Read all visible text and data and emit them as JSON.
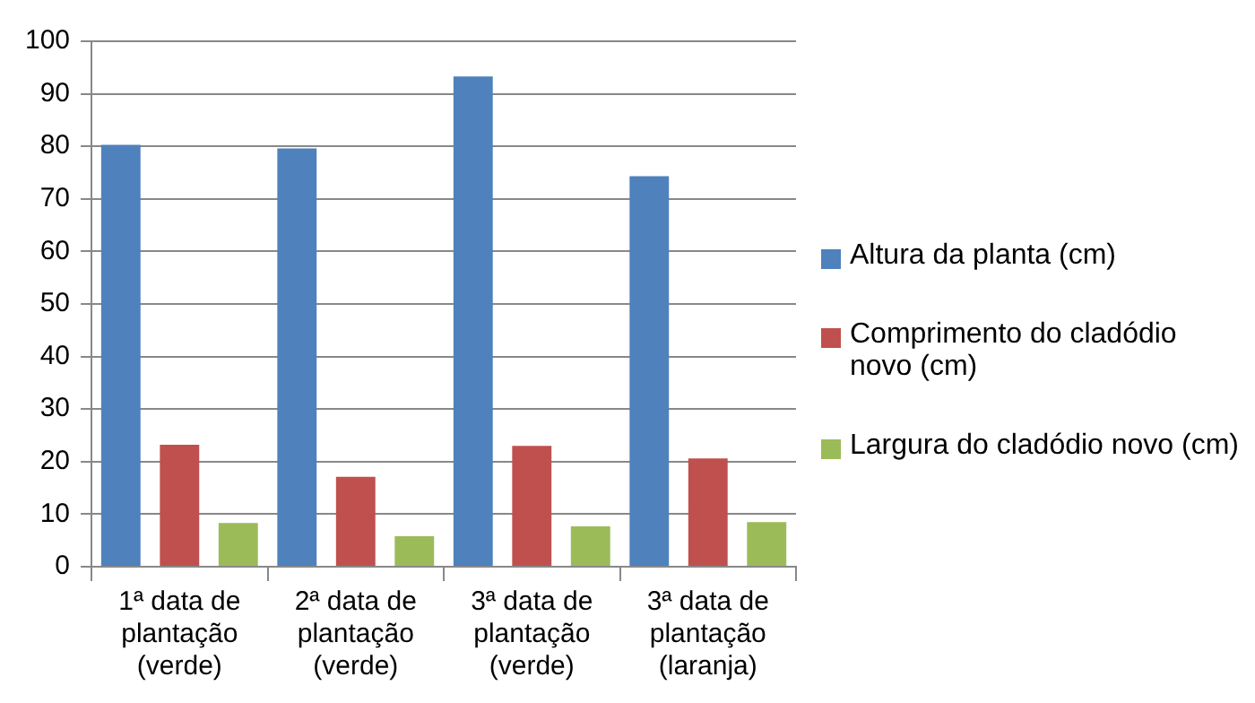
{
  "chart_data": {
    "type": "bar",
    "categories": [
      "1ª data de plantação (verde)",
      "2ª data de plantação (verde)",
      "3ª data de plantação (verde)",
      "3ª data de plantação (laranja)"
    ],
    "series": [
      {
        "name": "Altura da planta (cm)",
        "color": "#4f81bd",
        "values": [
          80.3,
          79.6,
          93.3,
          74.3
        ]
      },
      {
        "name": "Comprimento do cladódio novo (cm)",
        "color": "#c0504d",
        "values": [
          23.2,
          17.1,
          23.0,
          20.6
        ]
      },
      {
        "name": "Largura do cladódio novo (cm)",
        "color": "#9bbb59",
        "values": [
          8.3,
          5.8,
          7.7,
          8.5
        ]
      }
    ],
    "ylim": [
      0,
      100
    ],
    "yticks": [
      0,
      10,
      20,
      30,
      40,
      50,
      60,
      70,
      80,
      90,
      100
    ],
    "grid": "y",
    "legend": "right"
  }
}
